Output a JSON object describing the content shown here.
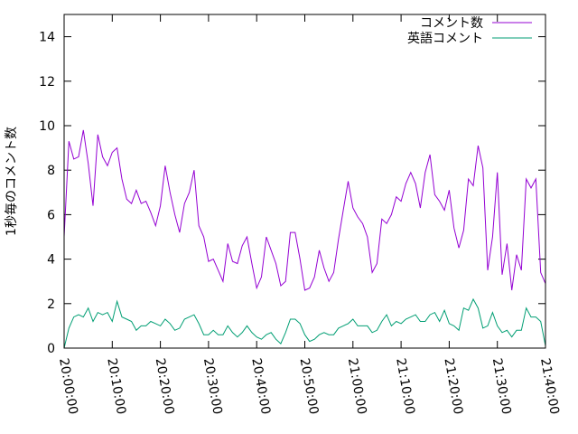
{
  "chart_data": {
    "type": "line",
    "title": "",
    "xlabel": "",
    "ylabel": "1秒毎のコメント数",
    "xlim": [
      "20:00:00",
      "21:40:00"
    ],
    "ylim": [
      0,
      15
    ],
    "x_ticks": [
      "20:00:00",
      "20:10:00",
      "20:20:00",
      "20:30:00",
      "20:40:00",
      "20:50:00",
      "21:00:00",
      "21:10:00",
      "21:20:00",
      "21:30:00",
      "21:40:00"
    ],
    "y_ticks": [
      "0",
      "2",
      "4",
      "6",
      "8",
      "10",
      "12",
      "14"
    ],
    "grid": false,
    "legend_position": "top-right",
    "x_step_seconds": 60,
    "series": [
      {
        "name": "コメント数",
        "color": "#9400d3",
        "values": [
          5.0,
          9.3,
          8.5,
          8.6,
          9.8,
          8.3,
          6.4,
          9.6,
          8.6,
          8.2,
          8.8,
          9.0,
          7.6,
          6.7,
          6.5,
          7.1,
          6.5,
          6.6,
          6.1,
          5.5,
          6.4,
          8.2,
          7.0,
          6.0,
          5.2,
          6.5,
          7.0,
          8.0,
          5.5,
          5.0,
          3.9,
          4.0,
          3.5,
          3.0,
          4.7,
          3.9,
          3.8,
          4.6,
          5.0,
          3.8,
          2.7,
          3.2,
          5.0,
          4.4,
          3.8,
          2.8,
          3.0,
          5.2,
          5.2,
          4.0,
          2.6,
          2.7,
          3.2,
          4.4,
          3.6,
          3.0,
          3.4,
          4.9,
          6.2,
          7.5,
          6.3,
          5.9,
          5.6,
          5.0,
          3.4,
          3.8,
          5.8,
          5.6,
          6.0,
          6.8,
          6.6,
          7.4,
          7.9,
          7.4,
          6.3,
          7.9,
          8.7,
          6.9,
          6.6,
          6.2,
          7.1,
          5.4,
          4.5,
          5.3,
          7.6,
          7.3,
          9.1,
          8.1,
          3.5,
          5.0,
          7.9,
          3.3,
          4.7,
          2.6,
          4.2,
          3.5,
          7.6,
          7.2,
          7.6,
          3.4,
          2.9
        ]
      },
      {
        "name": "英語コメント",
        "color": "#009e73",
        "values": [
          0.0,
          0.9,
          1.4,
          1.5,
          1.4,
          1.8,
          1.2,
          1.6,
          1.5,
          1.6,
          1.2,
          2.1,
          1.4,
          1.3,
          1.2,
          0.8,
          1.0,
          1.0,
          1.2,
          1.1,
          1.0,
          1.3,
          1.1,
          0.8,
          0.9,
          1.3,
          1.4,
          1.5,
          1.1,
          0.6,
          0.6,
          0.8,
          0.6,
          0.6,
          1.0,
          0.7,
          0.5,
          0.7,
          1.0,
          0.7,
          0.5,
          0.4,
          0.6,
          0.7,
          0.4,
          0.2,
          0.7,
          1.3,
          1.3,
          1.1,
          0.6,
          0.3,
          0.4,
          0.6,
          0.7,
          0.6,
          0.6,
          0.9,
          1.0,
          1.1,
          1.3,
          1.0,
          1.0,
          1.0,
          0.7,
          0.8,
          1.2,
          1.5,
          1.0,
          1.2,
          1.1,
          1.3,
          1.4,
          1.5,
          1.2,
          1.2,
          1.5,
          1.6,
          1.2,
          1.7,
          1.1,
          1.0,
          0.8,
          1.8,
          1.7,
          2.2,
          1.8,
          0.9,
          1.0,
          1.6,
          1.0,
          0.7,
          0.8,
          0.5,
          0.8,
          0.8,
          1.8,
          1.4,
          1.4,
          1.2,
          0.1
        ]
      }
    ]
  }
}
